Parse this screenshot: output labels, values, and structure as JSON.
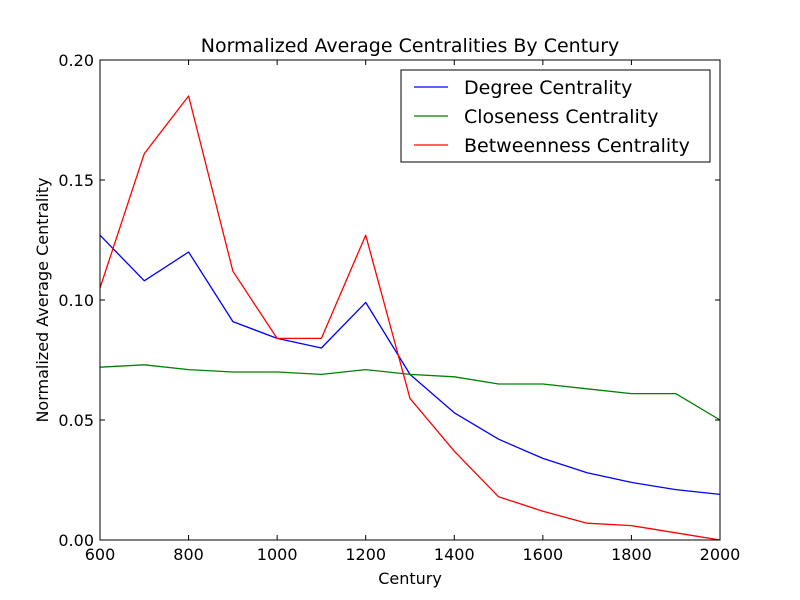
{
  "chart_data": {
    "type": "line",
    "title": "Normalized Average Centralities By Century",
    "xlabel": "Century",
    "ylabel": "Normalized Average Centrality",
    "xlim": [
      600,
      2000
    ],
    "ylim": [
      0.0,
      0.2
    ],
    "x": [
      600,
      700,
      800,
      900,
      1000,
      1100,
      1200,
      1300,
      1400,
      1500,
      1600,
      1700,
      1800,
      1900,
      2000
    ],
    "xticks": [
      600,
      800,
      1000,
      1200,
      1400,
      1600,
      1800,
      2000
    ],
    "xtick_labels": [
      "600",
      "800",
      "1000",
      "1200",
      "1400",
      "1600",
      "1800",
      "2000"
    ],
    "yticks": [
      0.0,
      0.05,
      0.1,
      0.15,
      0.2
    ],
    "ytick_labels": [
      "0.00",
      "0.05",
      "0.10",
      "0.15",
      "0.20"
    ],
    "grid": false,
    "legend_position": "top-right",
    "series": [
      {
        "name": "Degree Centrality",
        "color": "#0000ff",
        "values": [
          0.127,
          0.108,
          0.12,
          0.091,
          0.084,
          0.08,
          0.099,
          0.069,
          0.053,
          0.042,
          0.034,
          0.028,
          0.024,
          0.021,
          0.019
        ]
      },
      {
        "name": "Closeness Centrality",
        "color": "#008000",
        "values": [
          0.072,
          0.073,
          0.071,
          0.07,
          0.07,
          0.069,
          0.071,
          0.069,
          0.068,
          0.065,
          0.065,
          0.063,
          0.061,
          0.061,
          0.05
        ]
      },
      {
        "name": "Betweenness Centrality",
        "color": "#ff0000",
        "values": [
          0.105,
          0.161,
          0.185,
          0.112,
          0.084,
          0.084,
          0.127,
          0.059,
          0.037,
          0.018,
          0.012,
          0.007,
          0.006,
          0.003,
          0.0
        ]
      }
    ]
  }
}
